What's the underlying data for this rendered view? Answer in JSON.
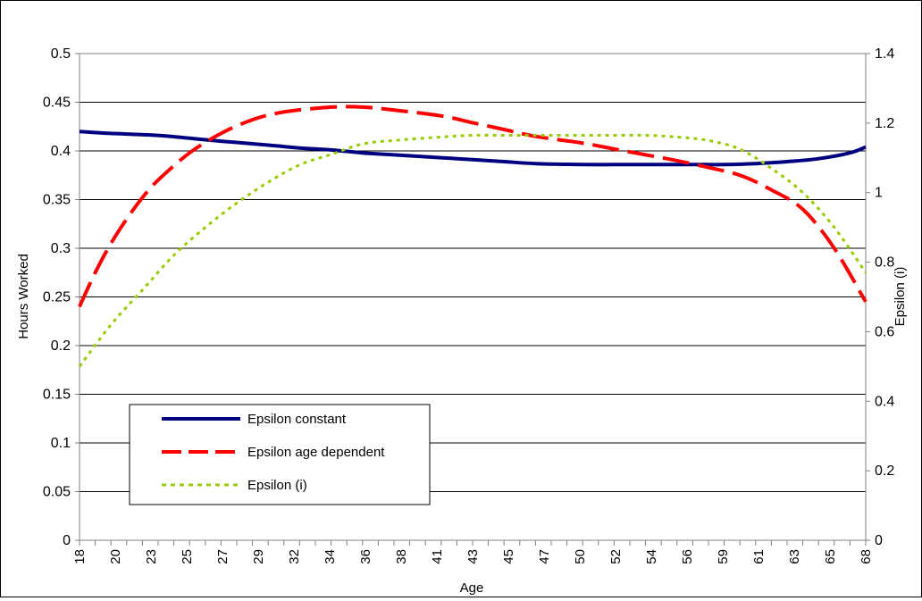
{
  "chart_data": {
    "type": "line",
    "title": "",
    "xlabel": "Age",
    "ylabel": "Hours Worked",
    "y2label": "Epsilon (i)",
    "ylim": [
      0,
      0.5
    ],
    "y2lim": [
      0,
      1.4
    ],
    "yticks": [
      "0",
      "0.05",
      "0.1",
      "0.15",
      "0.2",
      "0.25",
      "0.3",
      "0.35",
      "0.4",
      "0.45",
      "0.5"
    ],
    "y2ticks": [
      "0",
      "0.2",
      "0.4",
      "0.6",
      "0.8",
      "1",
      "1.2",
      "1.4"
    ],
    "xtick_labels": [
      "18",
      "20",
      "23",
      "25",
      "27",
      "29",
      "32",
      "34",
      "36",
      "38",
      "41",
      "43",
      "45",
      "47",
      "50",
      "52",
      "54",
      "56",
      "59",
      "61",
      "63",
      "65",
      "68"
    ],
    "grid": "horizontal major gridlines",
    "legend_position": "lower-left",
    "colors": {
      "constant": "#000080",
      "age_dependent": "#ff0000",
      "epsilon_i": "#99cc00"
    },
    "series": [
      {
        "name": "Epsilon constant",
        "axis": "left",
        "style": "solid",
        "x": [
          18,
          20,
          23,
          25,
          27,
          30,
          32,
          34,
          36,
          38,
          41,
          43,
          45,
          47,
          50,
          52,
          54,
          56,
          58,
          59,
          61,
          63,
          65,
          67,
          68
        ],
        "y": [
          0.42,
          0.418,
          0.416,
          0.413,
          0.41,
          0.406,
          0.403,
          0.401,
          0.398,
          0.396,
          0.393,
          0.391,
          0.389,
          0.387,
          0.386,
          0.386,
          0.386,
          0.386,
          0.386,
          0.386,
          0.387,
          0.389,
          0.392,
          0.398,
          0.404
        ]
      },
      {
        "name": "Epsilon age dependent",
        "axis": "left",
        "style": "dashed",
        "x": [
          18,
          19,
          20,
          21,
          22,
          23,
          25,
          27,
          29,
          31,
          34,
          36,
          38,
          41,
          43,
          45,
          47,
          50,
          52,
          54,
          56,
          58,
          60,
          62,
          64,
          66,
          68
        ],
        "y": [
          0.24,
          0.275,
          0.305,
          0.33,
          0.352,
          0.37,
          0.398,
          0.418,
          0.432,
          0.44,
          0.445,
          0.445,
          0.442,
          0.436,
          0.429,
          0.422,
          0.415,
          0.408,
          0.402,
          0.396,
          0.39,
          0.383,
          0.375,
          0.36,
          0.34,
          0.3,
          0.245
        ]
      },
      {
        "name": "Epsilon (i)",
        "axis": "right",
        "style": "dotted",
        "x": [
          18,
          20,
          22,
          24,
          26,
          28,
          30,
          32,
          34,
          36,
          38,
          41,
          43,
          45,
          47,
          50,
          52,
          54,
          56,
          58,
          60,
          62,
          64,
          66,
          68
        ],
        "y": [
          0.5,
          0.62,
          0.72,
          0.82,
          0.9,
          0.97,
          1.03,
          1.08,
          1.11,
          1.14,
          1.15,
          1.16,
          1.165,
          1.165,
          1.165,
          1.165,
          1.165,
          1.165,
          1.16,
          1.15,
          1.125,
          1.07,
          1.0,
          0.9,
          0.77
        ]
      }
    ]
  }
}
